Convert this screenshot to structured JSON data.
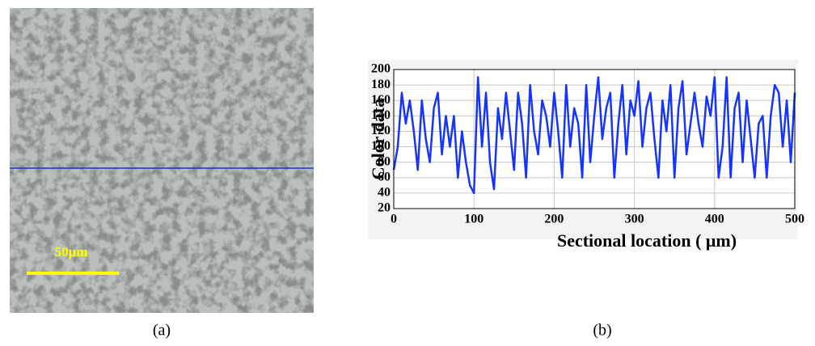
{
  "image": {
    "scale_label": "50μm",
    "caption": "(a)"
  },
  "chart_data": {
    "type": "line",
    "caption": "(b)",
    "x_label": "Sectional location ( μm)",
    "y_label": "Color data",
    "color": "#1535ff",
    "x": [
      0,
      5,
      10,
      15,
      20,
      25,
      30,
      35,
      40,
      45,
      50,
      55,
      60,
      65,
      70,
      75,
      80,
      85,
      90,
      95,
      100,
      105,
      110,
      115,
      120,
      125,
      130,
      135,
      140,
      145,
      150,
      155,
      160,
      165,
      170,
      175,
      180,
      185,
      190,
      195,
      200,
      205,
      210,
      215,
      220,
      225,
      230,
      235,
      240,
      245,
      250,
      255,
      260,
      265,
      270,
      275,
      280,
      285,
      290,
      295,
      300,
      305,
      310,
      315,
      320,
      325,
      330,
      335,
      340,
      345,
      350,
      355,
      360,
      365,
      370,
      375,
      380,
      385,
      390,
      395,
      400,
      405,
      410,
      415,
      420,
      425,
      430,
      435,
      440,
      445,
      450,
      455,
      460,
      465,
      470,
      475,
      480,
      485,
      490,
      495,
      500
    ],
    "values": [
      70,
      100,
      170,
      130,
      160,
      120,
      70,
      160,
      110,
      80,
      150,
      170,
      90,
      140,
      100,
      140,
      60,
      120,
      80,
      50,
      40,
      190,
      100,
      170,
      80,
      45,
      150,
      110,
      170,
      120,
      70,
      170,
      130,
      60,
      180,
      120,
      90,
      160,
      140,
      100,
      170,
      120,
      60,
      180,
      100,
      150,
      130,
      60,
      180,
      80,
      140,
      190,
      110,
      150,
      170,
      60,
      130,
      180,
      90,
      160,
      140,
      185,
      100,
      150,
      170,
      110,
      60,
      160,
      120,
      180,
      60,
      150,
      185,
      90,
      130,
      170,
      130,
      100,
      165,
      140,
      190,
      60,
      100,
      190,
      60,
      150,
      170,
      80,
      160,
      110,
      60,
      130,
      140,
      60,
      140,
      180,
      170,
      100,
      160,
      80,
      170
    ],
    "xlim": [
      0,
      500
    ],
    "xticks": [
      0,
      100,
      200,
      300,
      400,
      500
    ],
    "ylim": [
      20,
      200
    ],
    "yticks": [
      20,
      40,
      60,
      80,
      100,
      120,
      140,
      160,
      180,
      200
    ],
    "grid": true
  }
}
